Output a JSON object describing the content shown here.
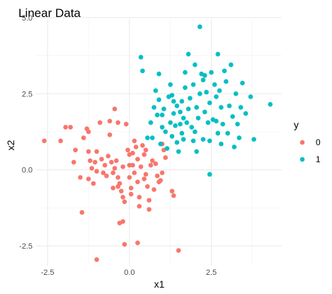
{
  "chart_data": {
    "type": "scatter",
    "title": "Linear Data",
    "xlabel": "x1",
    "ylabel": "x2",
    "xlim": [
      -2.85,
      4.65
    ],
    "ylim": [
      -3.15,
      4.95
    ],
    "xticks": [
      -2.5,
      0.0,
      2.5
    ],
    "xtick_labels": [
      "-2.5",
      "0.0",
      "2.5"
    ],
    "yticks": [
      -2.5,
      0.0,
      2.5,
      5.0
    ],
    "ytick_labels": [
      "-2.5",
      "0.0",
      "2.5",
      "5.0"
    ],
    "grid": true,
    "legend": {
      "title": "y",
      "position": "right"
    },
    "series": [
      {
        "name": "0",
        "color": "#F8766D",
        "points": [
          [
            -2.6,
            0.95
          ],
          [
            -2.1,
            0.95
          ],
          [
            -1.95,
            1.4
          ],
          [
            -1.8,
            1.4
          ],
          [
            -1.65,
            0.65
          ],
          [
            -1.7,
            0.25
          ],
          [
            -1.5,
            -0.25
          ],
          [
            -1.45,
            -1.4
          ],
          [
            -1.4,
            1.05
          ],
          [
            -1.3,
            1.35
          ],
          [
            -1.25,
            1.25
          ],
          [
            -1.25,
            0.6
          ],
          [
            -1.2,
            0.3
          ],
          [
            -1.15,
            0.05
          ],
          [
            -1.05,
            0.25
          ],
          [
            -1.0,
            -0.05
          ],
          [
            -1.25,
            -0.3
          ],
          [
            -1.1,
            -0.45
          ],
          [
            -1.0,
            0.6
          ],
          [
            -0.9,
            1.55
          ],
          [
            -0.85,
            0.35
          ],
          [
            -0.8,
            -0.1
          ],
          [
            -0.75,
            0.15
          ],
          [
            -0.7,
            -0.2
          ],
          [
            -0.65,
            0.45
          ],
          [
            -0.6,
            1.15
          ],
          [
            -0.6,
            1.6
          ],
          [
            -0.55,
            0.25
          ],
          [
            -0.5,
            -0.1
          ],
          [
            -0.5,
            -0.6
          ],
          [
            -0.45,
            2.0
          ],
          [
            -0.45,
            0.05
          ],
          [
            -0.4,
            0.3
          ],
          [
            -0.35,
            -0.25
          ],
          [
            -0.35,
            -0.55
          ],
          [
            -0.3,
            -0.45
          ],
          [
            -0.25,
            -0.7
          ],
          [
            -0.2,
            0.1
          ],
          [
            -0.2,
            -0.9
          ],
          [
            -0.15,
            -1.05
          ],
          [
            -0.3,
            -1.75
          ],
          [
            -0.2,
            -1.7
          ],
          [
            -0.15,
            -2.45
          ],
          [
            -1.0,
            -2.95
          ],
          [
            -0.1,
            1.5
          ],
          [
            -0.05,
            0.65
          ],
          [
            0.0,
            0.5
          ],
          [
            0.0,
            0.15
          ],
          [
            0.0,
            -0.25
          ],
          [
            0.05,
            -0.6
          ],
          [
            0.05,
            -0.8
          ],
          [
            0.1,
            0.55
          ],
          [
            0.1,
            0.15
          ],
          [
            0.15,
            -0.1
          ],
          [
            0.15,
            0.95
          ],
          [
            0.2,
            0.75
          ],
          [
            0.25,
            0.35
          ],
          [
            0.25,
            -0.4
          ],
          [
            0.3,
            -0.9
          ],
          [
            0.3,
            -1.2
          ],
          [
            0.35,
            0.1
          ],
          [
            0.4,
            0.8
          ],
          [
            0.45,
            0.5
          ],
          [
            0.45,
            -0.3
          ],
          [
            0.5,
            -0.15
          ],
          [
            0.5,
            0.65
          ],
          [
            0.55,
            -0.55
          ],
          [
            0.6,
            -1.0
          ],
          [
            0.6,
            -1.3
          ],
          [
            0.7,
            0.3
          ],
          [
            0.75,
            -0.65
          ],
          [
            0.8,
            0.2
          ],
          [
            0.85,
            -0.2
          ],
          [
            0.9,
            -0.4
          ],
          [
            0.95,
            -0.35
          ],
          [
            1.0,
            -0.1
          ],
          [
            1.0,
            0.85
          ],
          [
            1.05,
            0.65
          ],
          [
            1.1,
            0.4
          ],
          [
            1.3,
            -0.7
          ],
          [
            1.35,
            -0.85
          ],
          [
            1.5,
            -2.65
          ],
          [
            0.25,
            -2.4
          ],
          [
            -0.35,
            1.55
          ],
          [
            0.65,
            0.15
          ]
        ]
      },
      {
        "name": "1",
        "color": "#00BFC4",
        "points": [
          [
            0.35,
            3.7
          ],
          [
            0.4,
            3.25
          ],
          [
            0.55,
            1.05
          ],
          [
            0.65,
            1.55
          ],
          [
            0.75,
            2.05
          ],
          [
            0.8,
            2.6
          ],
          [
            0.85,
            1.8
          ],
          [
            0.9,
            2.3
          ],
          [
            0.9,
            3.15
          ],
          [
            0.95,
            0.85
          ],
          [
            1.0,
            1.4
          ],
          [
            1.0,
            1.8
          ],
          [
            1.05,
            2.0
          ],
          [
            1.1,
            1.25
          ],
          [
            1.15,
            0.7
          ],
          [
            1.2,
            2.4
          ],
          [
            1.25,
            1.55
          ],
          [
            1.25,
            2.8
          ],
          [
            1.3,
            1.1
          ],
          [
            1.35,
            1.85
          ],
          [
            1.35,
            2.25
          ],
          [
            1.4,
            1.45
          ],
          [
            1.45,
            0.9
          ],
          [
            1.45,
            2.1
          ],
          [
            1.5,
            0.6
          ],
          [
            1.55,
            1.5
          ],
          [
            1.55,
            1.9
          ],
          [
            1.6,
            1.2
          ],
          [
            1.6,
            2.25
          ],
          [
            1.65,
            1.0
          ],
          [
            1.65,
            1.7
          ],
          [
            1.7,
            2.7
          ],
          [
            1.7,
            3.2
          ],
          [
            1.75,
            1.55
          ],
          [
            1.8,
            2.0
          ],
          [
            1.8,
            3.8
          ],
          [
            1.85,
            2.35
          ],
          [
            1.9,
            1.4
          ],
          [
            1.95,
            0.95
          ],
          [
            1.95,
            2.8
          ],
          [
            2.0,
            1.25
          ],
          [
            2.0,
            3.45
          ],
          [
            2.05,
            0.6
          ],
          [
            2.05,
            2.05
          ],
          [
            2.1,
            1.7
          ],
          [
            2.15,
            2.5
          ],
          [
            2.15,
            4.7
          ],
          [
            2.2,
            3.15
          ],
          [
            2.25,
            1.0
          ],
          [
            2.25,
            2.95
          ],
          [
            2.3,
            1.9
          ],
          [
            2.3,
            3.1
          ],
          [
            2.35,
            2.55
          ],
          [
            2.4,
            1.55
          ],
          [
            2.45,
            0.95
          ],
          [
            2.45,
            2.2
          ],
          [
            2.5,
            3.2
          ],
          [
            2.55,
            1.65
          ],
          [
            2.6,
            2.8
          ],
          [
            2.65,
            2.4
          ],
          [
            2.7,
            1.2
          ],
          [
            2.7,
            3.8
          ],
          [
            2.75,
            2.6
          ],
          [
            2.8,
            0.85
          ],
          [
            2.8,
            2.05
          ],
          [
            2.85,
            1.5
          ],
          [
            2.9,
            3.25
          ],
          [
            2.95,
            2.9
          ],
          [
            3.0,
            1.2
          ],
          [
            3.05,
            2.1
          ],
          [
            3.1,
            3.45
          ],
          [
            3.15,
            1.75
          ],
          [
            3.2,
            0.75
          ],
          [
            3.25,
            2.5
          ],
          [
            3.3,
            1.5
          ],
          [
            3.35,
            1.05
          ],
          [
            3.4,
            2.05
          ],
          [
            3.45,
            2.85
          ],
          [
            3.55,
            1.85
          ],
          [
            3.7,
            2.4
          ],
          [
            3.8,
            1.0
          ],
          [
            4.3,
            2.15
          ],
          [
            2.45,
            -0.15
          ],
          [
            2.65,
            1.6
          ],
          [
            1.3,
            2.45
          ],
          [
            0.7,
            1.05
          ]
        ]
      }
    ]
  }
}
